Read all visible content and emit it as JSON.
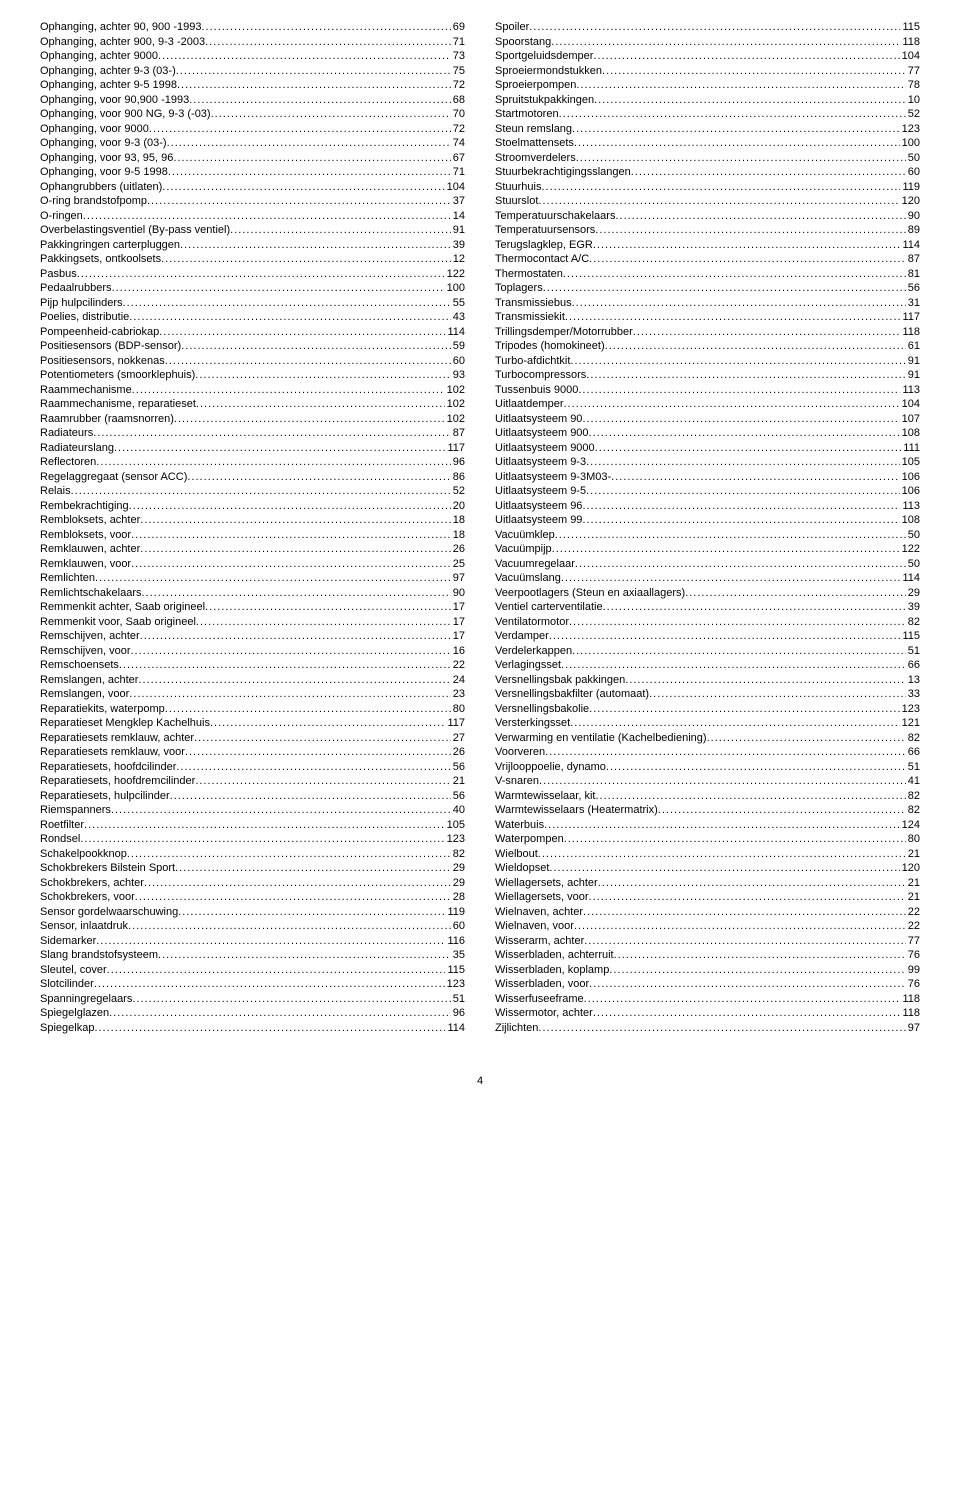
{
  "page_number": "4",
  "left": [
    {
      "label": "Ophanging, achter 90, 900 -1993",
      "page": "69"
    },
    {
      "label": "Ophanging, achter 900, 9-3 -2003",
      "page": "71"
    },
    {
      "label": "Ophanging, achter 9000",
      "page": "73"
    },
    {
      "label": "Ophanging, achter 9-3 (03-)",
      "page": "75"
    },
    {
      "label": "Ophanging, achter 9-5 1998",
      "page": "72"
    },
    {
      "label": "Ophanging, voor 90,900 -1993",
      "page": "68"
    },
    {
      "label": "Ophanging, voor 900 NG, 9-3 (-03)",
      "page": "70"
    },
    {
      "label": "Ophanging, voor 9000",
      "page": "72"
    },
    {
      "label": "Ophanging, voor 9-3 (03-)",
      "page": "74"
    },
    {
      "label": "Ophanging, voor 93, 95, 96",
      "page": "67"
    },
    {
      "label": "Ophanging, voor 9-5 1998",
      "page": "71"
    },
    {
      "label": "Ophangrubbers (uitlaten)",
      "page": "104"
    },
    {
      "label": "O-ring brandstofpomp",
      "page": "37"
    },
    {
      "label": "O-ringen",
      "page": "14"
    },
    {
      "label": "Overbelastingsventiel (By-pass ventiel)",
      "page": "91"
    },
    {
      "label": "Pakkingringen carterpluggen",
      "page": "39"
    },
    {
      "label": "Pakkingsets, ontkoolsets",
      "page": "12"
    },
    {
      "label": "Pasbus",
      "page": "122"
    },
    {
      "label": "Pedaalrubbers",
      "page": "100"
    },
    {
      "label": "Pijp hulpcilinders",
      "page": "55"
    },
    {
      "label": "Poelies, distributie",
      "page": "43"
    },
    {
      "label": "Pompeenheid-cabriokap",
      "page": "114"
    },
    {
      "label": "Positiesensors (BDP-sensor)",
      "page": "59"
    },
    {
      "label": "Positiesensors, nokkenas",
      "page": "60"
    },
    {
      "label": "Potentiometers (smoorklephuis)",
      "page": "93"
    },
    {
      "label": "Raammechanisme",
      "page": "102"
    },
    {
      "label": "Raammechanisme, reparatieset",
      "page": "102"
    },
    {
      "label": "Raamrubber (raamsnorren)",
      "page": "102"
    },
    {
      "label": "Radiateurs",
      "page": "87"
    },
    {
      "label": "Radiateurslang",
      "page": "117"
    },
    {
      "label": "Reflectoren",
      "page": "96"
    },
    {
      "label": "Regelaggregaat (sensor ACC)",
      "page": "86"
    },
    {
      "label": "Relais",
      "page": "52"
    },
    {
      "label": "Rembekrachtiging",
      "page": "20"
    },
    {
      "label": "Rembloksets, achter",
      "page": "18"
    },
    {
      "label": "Rembloksets, voor",
      "page": "18"
    },
    {
      "label": "Remklauwen, achter",
      "page": "26"
    },
    {
      "label": "Remklauwen, voor",
      "page": "25"
    },
    {
      "label": "Remlichten",
      "page": "97"
    },
    {
      "label": "Remlichtschakelaars",
      "page": "90"
    },
    {
      "label": "Remmenkit achter, Saab origineel",
      "page": "17"
    },
    {
      "label": "Remmenkit voor, Saab origineel",
      "page": "17"
    },
    {
      "label": "Remschijven, achter",
      "page": "17"
    },
    {
      "label": "Remschijven, voor",
      "page": "16"
    },
    {
      "label": "Remschoensets",
      "page": "22"
    },
    {
      "label": "Remslangen, achter",
      "page": "24"
    },
    {
      "label": "Remslangen, voor",
      "page": "23"
    },
    {
      "label": "Reparatiekits, waterpomp",
      "page": "80"
    },
    {
      "label": "Reparatieset Mengklep Kachelhuis",
      "page": "117"
    },
    {
      "label": "Reparatiesets remklauw, achter",
      "page": "27"
    },
    {
      "label": "Reparatiesets remklauw, voor",
      "page": "26"
    },
    {
      "label": "Reparatiesets, hoofdcilinder",
      "page": "56"
    },
    {
      "label": "Reparatiesets, hoofdremcilinder",
      "page": "21"
    },
    {
      "label": "Reparatiesets, hulpcilinder",
      "page": "56"
    },
    {
      "label": "Riemspanners",
      "page": "40"
    },
    {
      "label": "Roetfilter",
      "page": "105"
    },
    {
      "label": "Rondsel",
      "page": "123"
    },
    {
      "label": "Schakelpookknop",
      "page": "82"
    },
    {
      "label": "Schokbrekers Bilstein Sport",
      "page": "29"
    },
    {
      "label": "Schokbrekers, achter",
      "page": "29"
    },
    {
      "label": "Schokbrekers, voor",
      "page": "28"
    },
    {
      "label": "Sensor gordelwaarschuwing",
      "page": "119"
    },
    {
      "label": "Sensor, inlaatdruk",
      "page": "60"
    },
    {
      "label": "Sidemarker",
      "page": "116"
    },
    {
      "label": "Slang brandstofsysteem",
      "page": "35"
    },
    {
      "label": "Sleutel, cover",
      "page": "115"
    },
    {
      "label": "Slotcilinder",
      "page": "123"
    },
    {
      "label": "Spanningregelaars",
      "page": "51"
    },
    {
      "label": "Spiegelglazen",
      "page": "96"
    },
    {
      "label": "Spiegelkap",
      "page": "114"
    }
  ],
  "right": [
    {
      "label": "Spoiler",
      "page": "115"
    },
    {
      "label": "Spoorstang",
      "page": "118"
    },
    {
      "label": "Sportgeluidsdemper",
      "page": "104"
    },
    {
      "label": "Sproeiermondstukken",
      "page": "77"
    },
    {
      "label": "Sproeierpompen",
      "page": "78"
    },
    {
      "label": "Spruitstukpakkingen",
      "page": "10"
    },
    {
      "label": "Startmotoren",
      "page": "52"
    },
    {
      "label": "Steun remslang",
      "page": "123"
    },
    {
      "label": "Stoelmattensets",
      "page": "100"
    },
    {
      "label": "Stroomverdelers",
      "page": "50"
    },
    {
      "label": "Stuurbekrachtigingsslangen",
      "page": "60"
    },
    {
      "label": "Stuurhuis",
      "page": "119"
    },
    {
      "label": "Stuurslot",
      "page": "120"
    },
    {
      "label": "Temperatuurschakelaars",
      "page": "90"
    },
    {
      "label": "Temperatuursensors",
      "page": "89"
    },
    {
      "label": "Terugslagklep, EGR",
      "page": "114"
    },
    {
      "label": "Thermocontact A/C",
      "page": "87"
    },
    {
      "label": "Thermostaten",
      "page": "81"
    },
    {
      "label": "Toplagers",
      "page": "56"
    },
    {
      "label": "Transmissiebus",
      "page": "31"
    },
    {
      "label": "Transmissiekit",
      "page": "117"
    },
    {
      "label": "Trillingsdemper/Motorrubber",
      "page": "118"
    },
    {
      "label": "Tripodes (homokineet)",
      "page": "61"
    },
    {
      "label": "Turbo-afdichtkit",
      "page": "91"
    },
    {
      "label": "Turbocompressors",
      "page": "91"
    },
    {
      "label": "Tussenbuis 9000",
      "page": "113"
    },
    {
      "label": "Uitlaatdemper",
      "page": "104"
    },
    {
      "label": "Uitlaatsysteem 90",
      "page": "107"
    },
    {
      "label": "Uitlaatsysteem 900",
      "page": "108"
    },
    {
      "label": "Uitlaatsysteem 9000",
      "page": "111"
    },
    {
      "label": "Uitlaatsysteem 9-3",
      "page": "105"
    },
    {
      "label": "Uitlaatsysteem 9-3M03-",
      "page": "106"
    },
    {
      "label": "Uitlaatsysteem 9-5",
      "page": "106"
    },
    {
      "label": "Uitlaatsysteem 96",
      "page": "113"
    },
    {
      "label": "Uitlaatsysteem 99",
      "page": "108"
    },
    {
      "label": "Vacuümklep",
      "page": "50"
    },
    {
      "label": "Vacuümpijp",
      "page": "122"
    },
    {
      "label": "Vacuumregelaar",
      "page": "50"
    },
    {
      "label": "Vacuümslang",
      "page": "114"
    },
    {
      "label": "Veerpootlagers (Steun en axiaallagers)",
      "page": "29"
    },
    {
      "label": "Ventiel carterventilatie",
      "page": "39"
    },
    {
      "label": "Ventilatormotor",
      "page": "82"
    },
    {
      "label": "Verdamper",
      "page": "115"
    },
    {
      "label": "Verdelerkappen",
      "page": "51"
    },
    {
      "label": "Verlagingsset",
      "page": "66"
    },
    {
      "label": "Versnellingsbak pakkingen",
      "page": "13"
    },
    {
      "label": "Versnellingsbakfilter (automaat)",
      "page": "33"
    },
    {
      "label": "Versnellingsbakolie",
      "page": "123"
    },
    {
      "label": "Versterkingsset",
      "page": "121"
    },
    {
      "label": "Verwarming en ventilatie (Kachelbediening)",
      "page": "82"
    },
    {
      "label": "Voorveren",
      "page": "66"
    },
    {
      "label": "Vrijlooppoelie, dynamo",
      "page": "51"
    },
    {
      "label": "V-snaren",
      "page": "41"
    },
    {
      "label": "Warmtewisselaar, kit",
      "page": "82"
    },
    {
      "label": "Warmtewisselaars (Heatermatrix)",
      "page": "82"
    },
    {
      "label": "Waterbuis",
      "page": "124"
    },
    {
      "label": "Waterpompen",
      "page": "80"
    },
    {
      "label": "Wielbout",
      "page": "21"
    },
    {
      "label": "Wieldopset",
      "page": "120"
    },
    {
      "label": "Wiellagersets, achter",
      "page": "21"
    },
    {
      "label": "Wiellagersets, voor",
      "page": "21"
    },
    {
      "label": "Wielnaven, achter",
      "page": "22"
    },
    {
      "label": "Wielnaven, voor",
      "page": "22"
    },
    {
      "label": "Wisserarm, achter",
      "page": "77"
    },
    {
      "label": "Wisserbladen, achterruit",
      "page": "76"
    },
    {
      "label": "Wisserbladen, koplamp",
      "page": "99"
    },
    {
      "label": "Wisserbladen, voor",
      "page": "76"
    },
    {
      "label": "Wisserfuseeframe",
      "page": "118"
    },
    {
      "label": "Wissermotor, achter",
      "page": "118"
    },
    {
      "label": "Zijlichten",
      "page": "97"
    }
  ]
}
